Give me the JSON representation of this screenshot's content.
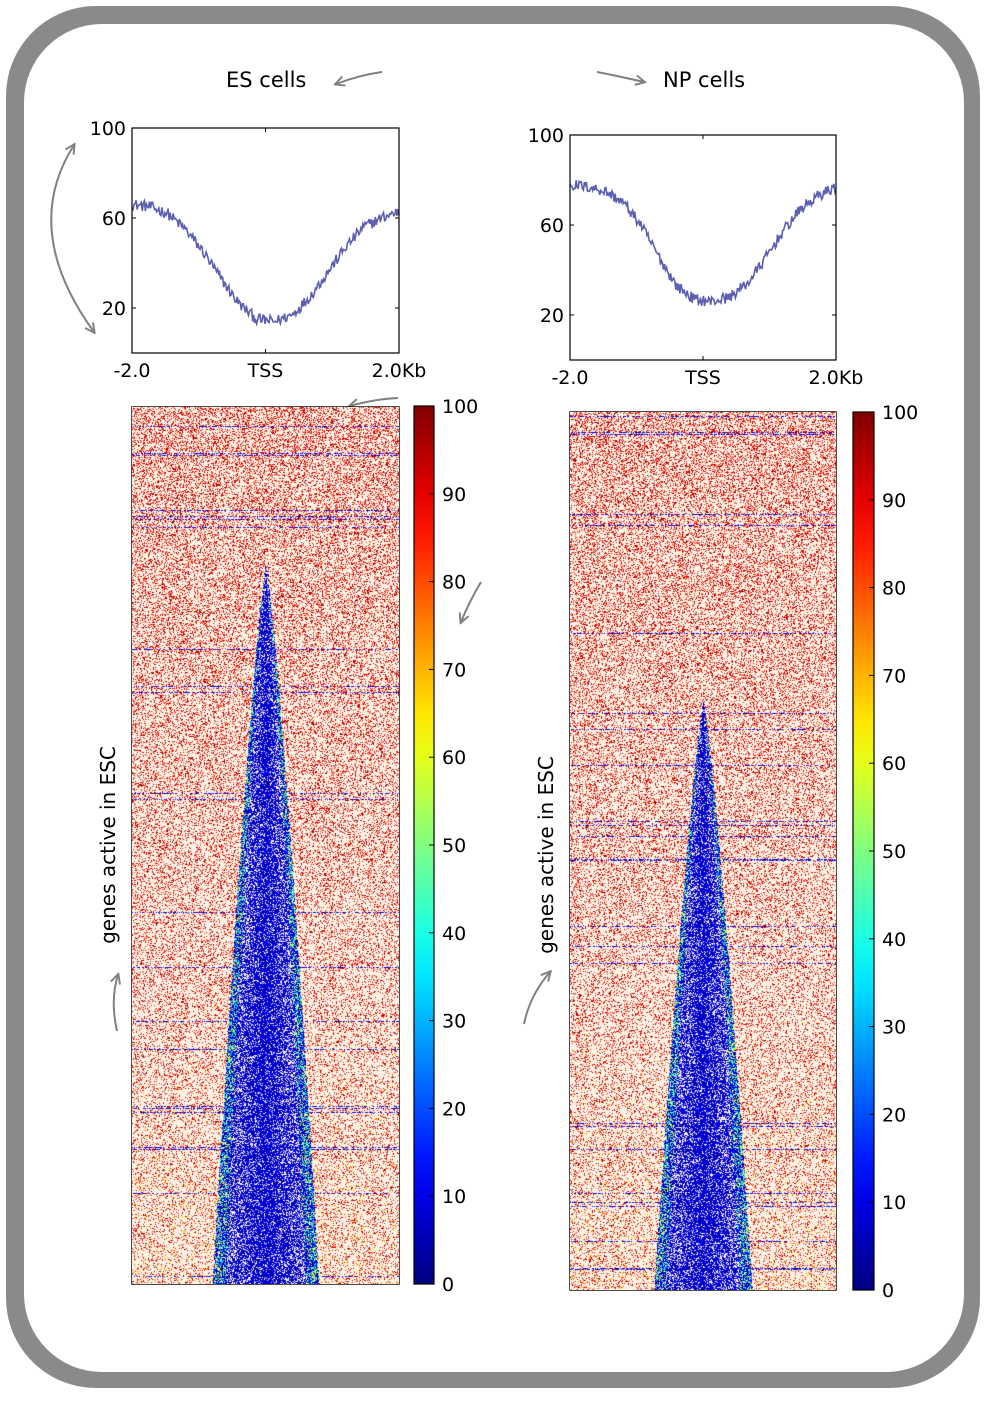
{
  "panels": [
    {
      "title": "ES cells",
      "heatmap_ylabel": "genes active in ESC",
      "profile_min": 14,
      "profile_edge_left": 66,
      "profile_edge_right": 63
    },
    {
      "title": "NP cells",
      "heatmap_ylabel": "genes active in ESC",
      "profile_min": 26,
      "profile_edge_left": 78,
      "profile_edge_right": 77
    }
  ],
  "chart_data": [
    {
      "type": "line",
      "title": "ES cells",
      "x_ticks": [
        "-2.0",
        "TSS",
        "2.0Kb"
      ],
      "y_ticks": [
        20,
        60,
        100
      ],
      "ylim": [
        0,
        100
      ],
      "series": [
        {
          "values": [
            66,
            65,
            62,
            55,
            45,
            33,
            22,
            15,
            14,
            17,
            25,
            36,
            47,
            56,
            60,
            63
          ]
        }
      ],
      "color": "#5c5fb0"
    },
    {
      "type": "line",
      "title": "NP cells",
      "x_ticks": [
        "-2.0",
        "TSS",
        "2.0Kb"
      ],
      "y_ticks": [
        20,
        60,
        100
      ],
      "ylim": [
        0,
        100
      ],
      "series": [
        {
          "values": [
            78,
            77,
            75,
            70,
            60,
            46,
            33,
            27,
            26,
            28,
            34,
            45,
            57,
            67,
            73,
            77
          ]
        }
      ],
      "color": "#5c5fb0"
    },
    {
      "type": "heatmap",
      "ylabel": "genes active in ESC",
      "colorbar_ticks": [
        0,
        10,
        20,
        30,
        40,
        50,
        60,
        70,
        80,
        90,
        100
      ],
      "colormap": "jet",
      "background": "#fbf2e4"
    },
    {
      "type": "heatmap",
      "ylabel": "genes active in ESC",
      "colorbar_ticks": [
        0,
        10,
        20,
        30,
        40,
        50,
        60,
        70,
        80,
        90,
        100
      ],
      "colormap": "jet",
      "background": "#fbf2e4"
    }
  ]
}
